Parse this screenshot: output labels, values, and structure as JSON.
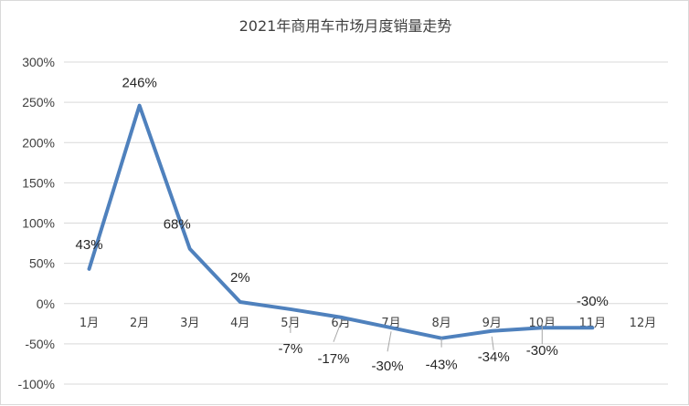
{
  "chart_data": {
    "type": "line",
    "title": "2021年商用车市场月度销量走势",
    "xlabel": "",
    "ylabel": "",
    "categories": [
      "1月",
      "2月",
      "3月",
      "4月",
      "5月",
      "6月",
      "7月",
      "8月",
      "9月",
      "10月",
      "11月",
      "12月"
    ],
    "y_tick_labels": [
      "300%",
      "250%",
      "200%",
      "150%",
      "100%",
      "50%",
      "0%",
      "-50%",
      "-100%"
    ],
    "y_ticks": [
      300,
      250,
      200,
      150,
      100,
      50,
      0,
      -50,
      -100
    ],
    "ylim": [
      -100,
      300
    ],
    "grid": true,
    "legend": "none",
    "series_color": "#4f81bd",
    "series": [
      {
        "values": [
          43,
          246,
          68,
          2,
          -7,
          -17,
          -30,
          -43,
          -34,
          -30,
          -30,
          null
        ],
        "data_labels": [
          "43%",
          "246%",
          "68%",
          "2%",
          "-7%",
          "-17%",
          "-30%",
          "-43%",
          "-34%",
          "-30%",
          "-30%",
          ""
        ]
      }
    ]
  }
}
